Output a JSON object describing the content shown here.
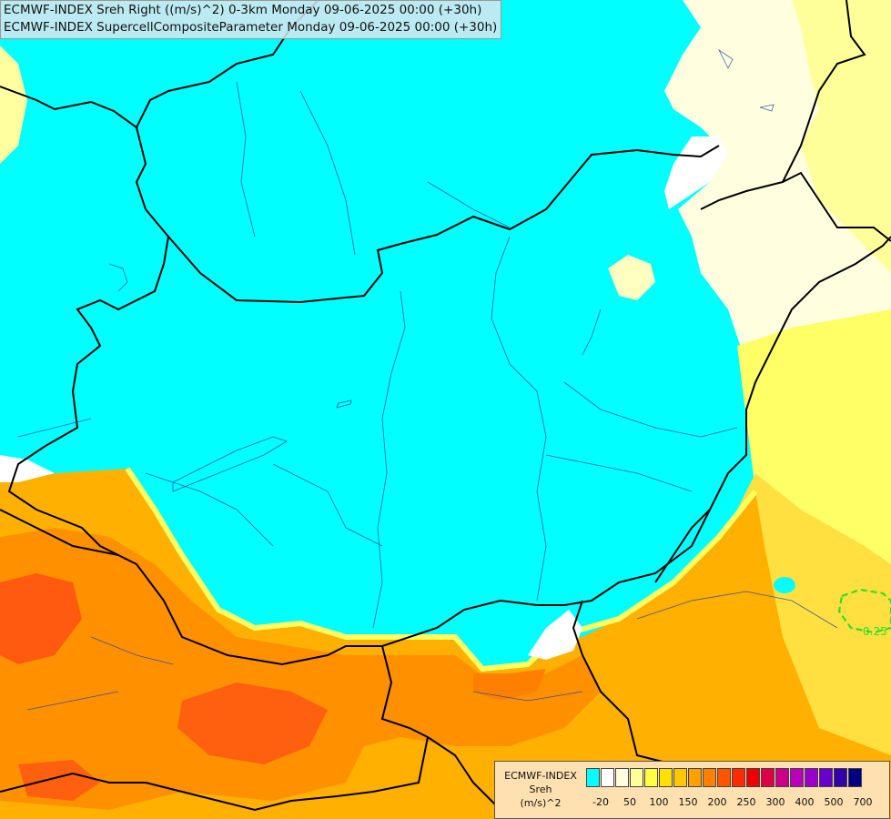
{
  "title": {
    "line1": "ECMWF-INDEX Sreh Right ((m/s)^2) 0-3km Monday 09-06-2025 00:00 (+30h)",
    "line2": "ECMWF-INDEX SupercellCompositeParameter Monday 09-06-2025 00:00 (+30h)"
  },
  "legend": {
    "caption_line1": "ECMWF-INDEX",
    "caption_line2": "Sreh",
    "caption_line3": "(m/s)^2",
    "tick_labels": [
      "-20",
      "50",
      "100",
      "150",
      "200",
      "250",
      "300",
      "400",
      "500",
      "700"
    ],
    "colors": [
      "#00ffff",
      "#ffffff",
      "#ffffe0",
      "#ffff99",
      "#ffff40",
      "#ffe000",
      "#ffc800",
      "#ffa000",
      "#ff8000",
      "#ff5500",
      "#ff2a00",
      "#ee0000",
      "#dd0044",
      "#cc0088",
      "#bb00bb",
      "#9900cc",
      "#6600cc",
      "#3300aa",
      "#000080"
    ]
  },
  "map": {
    "contour_label": "0.25",
    "contour_color": "#33dd22",
    "colors": {
      "background": "#00ffff",
      "white": "#ffffff",
      "pale_yellow": "#ffffc0",
      "light_yellow": "#ffff80",
      "yellow": "#ffff40",
      "gold": "#ffd000",
      "orange_light": "#ffb000",
      "orange": "#ff9000",
      "orange_dark": "#ff7000",
      "red_orange": "#ff4a10"
    }
  }
}
